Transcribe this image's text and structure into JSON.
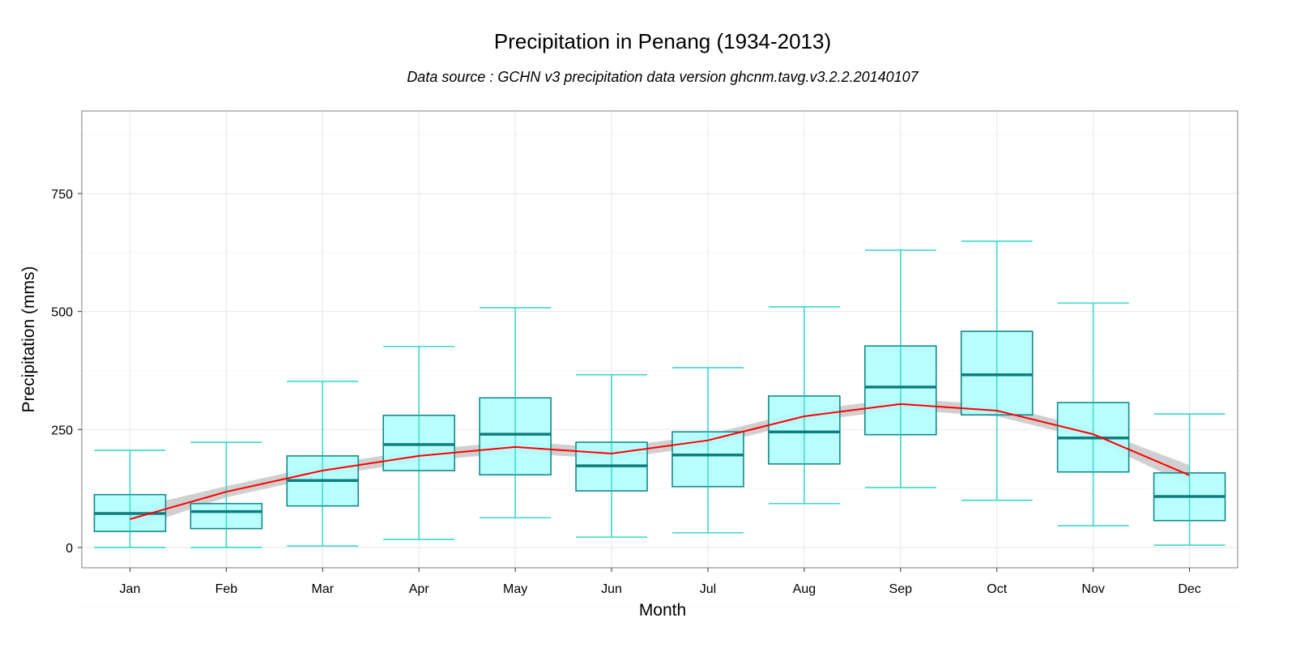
{
  "chart_data": {
    "type": "box",
    "title": "Precipitation in Penang (1934-2013)",
    "subtitle": "Data source : GCHN v3 precipitation data version ghcnm.tavg.v3.2.2.20140107",
    "xlabel": "Month",
    "ylabel": "Precipitation (mms)",
    "ylim": [
      -43,
      925
    ],
    "yticks": [
      0,
      250,
      500,
      750
    ],
    "grid": true,
    "categories": [
      "Jan",
      "Feb",
      "Mar",
      "Apr",
      "May",
      "Jun",
      "Jul",
      "Aug",
      "Sep",
      "Oct",
      "Nov",
      "Dec"
    ],
    "boxes": [
      {
        "min": 0,
        "q1": 34,
        "median": 72,
        "q3": 112,
        "max": 206
      },
      {
        "min": 0,
        "q1": 40,
        "median": 76,
        "q3": 93,
        "max": 223
      },
      {
        "min": 3,
        "q1": 88,
        "median": 142,
        "q3": 194,
        "max": 352
      },
      {
        "min": 17,
        "q1": 163,
        "median": 218,
        "q3": 280,
        "max": 426
      },
      {
        "min": 63,
        "q1": 154,
        "median": 240,
        "q3": 317,
        "max": 508
      },
      {
        "min": 22,
        "q1": 120,
        "median": 173,
        "q3": 223,
        "max": 366
      },
      {
        "min": 31,
        "q1": 129,
        "median": 196,
        "q3": 245,
        "max": 381
      },
      {
        "min": 93,
        "q1": 177,
        "median": 245,
        "q3": 321,
        "max": 510
      },
      {
        "min": 127,
        "q1": 239,
        "median": 340,
        "q3": 427,
        "max": 630
      },
      {
        "min": 100,
        "q1": 281,
        "median": 366,
        "q3": 458,
        "max": 649
      },
      {
        "min": 46,
        "q1": 160,
        "median": 232,
        "q3": 307,
        "max": 518
      },
      {
        "min": 5,
        "q1": 57,
        "median": 108,
        "q3": 158,
        "max": 283
      }
    ],
    "trend": [
      60,
      118,
      163,
      194,
      213,
      199,
      227,
      278,
      304,
      290,
      240,
      153
    ],
    "trend_band": 12,
    "colors": {
      "box_fill": "#b3ffff",
      "box_border": "#138a8a",
      "median": "#0f7d7d",
      "whisker": "#3ad9c8",
      "trend": "#ff0000",
      "band": "#c8c8c8",
      "grid": "#ebebeb",
      "panel_border": "#7f7f7f"
    }
  }
}
